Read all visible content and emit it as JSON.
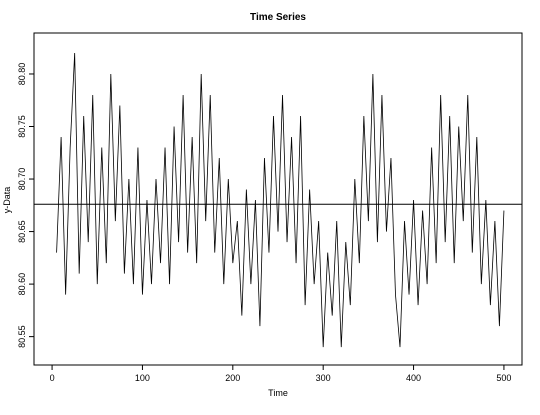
{
  "chart_data": {
    "type": "line",
    "title": "Time Series",
    "x_label": "Time",
    "y_label": "y-Data",
    "x": [
      5,
      10,
      15,
      20,
      25,
      30,
      35,
      40,
      45,
      50,
      55,
      60,
      65,
      70,
      75,
      80,
      85,
      90,
      95,
      100,
      105,
      110,
      115,
      120,
      125,
      130,
      135,
      140,
      145,
      150,
      155,
      160,
      165,
      170,
      175,
      180,
      185,
      190,
      195,
      200,
      205,
      210,
      215,
      220,
      225,
      230,
      235,
      240,
      245,
      250,
      255,
      260,
      265,
      270,
      275,
      280,
      285,
      290,
      295,
      300,
      305,
      310,
      315,
      320,
      325,
      330,
      335,
      340,
      345,
      350,
      355,
      360,
      365,
      370,
      375,
      380,
      385,
      390,
      395,
      400,
      405,
      410,
      415,
      420,
      425,
      430,
      435,
      440,
      445,
      450,
      455,
      460,
      465,
      470,
      475,
      480,
      485,
      490,
      495,
      500
    ],
    "series": [
      {
        "name": "y-Data",
        "color": "#000000",
        "values": [
          80.63,
          80.74,
          80.59,
          80.73,
          80.82,
          80.61,
          80.76,
          80.64,
          80.78,
          80.6,
          80.73,
          80.62,
          80.8,
          80.66,
          80.77,
          80.61,
          80.7,
          80.6,
          80.73,
          80.59,
          80.68,
          80.6,
          80.7,
          80.62,
          80.73,
          80.6,
          80.75,
          80.64,
          80.78,
          80.63,
          80.74,
          80.62,
          80.8,
          80.66,
          80.78,
          80.63,
          80.72,
          80.6,
          80.7,
          80.62,
          80.66,
          80.57,
          80.69,
          80.6,
          80.68,
          80.56,
          80.72,
          80.63,
          80.76,
          80.65,
          80.78,
          80.64,
          80.74,
          80.62,
          80.76,
          80.58,
          80.69,
          80.6,
          80.66,
          80.54,
          80.63,
          80.57,
          80.66,
          80.54,
          80.64,
          80.58,
          80.7,
          80.62,
          80.76,
          80.66,
          80.8,
          80.64,
          80.78,
          80.65,
          80.72,
          80.59,
          80.54,
          80.66,
          80.59,
          80.68,
          80.58,
          80.67,
          80.6,
          80.73,
          80.62,
          80.78,
          80.64,
          80.76,
          80.62,
          80.75,
          80.66,
          80.78,
          80.63,
          80.74,
          80.6,
          80.68,
          80.58,
          80.66,
          80.56,
          80.67
        ]
      }
    ],
    "hline": 80.676,
    "xlim": [
      -20,
      520
    ],
    "ylim": [
      80.523,
      80.839
    ],
    "xticks": [
      0,
      100,
      200,
      300,
      400,
      500
    ],
    "yticks": [
      80.55,
      {
        "value": 80.6,
        "label": "80.60"
      },
      80.65,
      {
        "value": 80.7,
        "label": "80.70"
      },
      80.75,
      {
        "value": 80.8,
        "label": "80.80"
      }
    ]
  }
}
